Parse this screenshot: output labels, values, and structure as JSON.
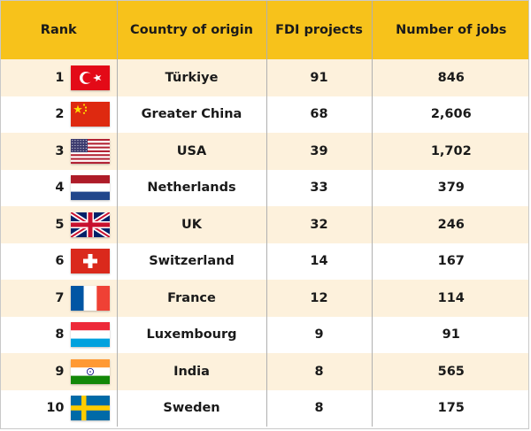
{
  "headers": [
    "Rank",
    "Country of origin",
    "FDI projects",
    "Number of jobs"
  ],
  "rows": [
    {
      "rank": "1",
      "flag": "turkey-flag-icon",
      "country": "Türkiye",
      "projects": "91",
      "jobs": "846"
    },
    {
      "rank": "2",
      "flag": "china-flag-icon",
      "country": "Greater China",
      "projects": "68",
      "jobs": "2,606"
    },
    {
      "rank": "3",
      "flag": "usa-flag-icon",
      "country": "USA",
      "projects": "39",
      "jobs": "1,702"
    },
    {
      "rank": "4",
      "flag": "netherlands-flag-icon",
      "country": "Netherlands",
      "projects": "33",
      "jobs": "379"
    },
    {
      "rank": "5",
      "flag": "uk-flag-icon",
      "country": "UK",
      "projects": "32",
      "jobs": "246"
    },
    {
      "rank": "6",
      "flag": "switzerland-flag-icon",
      "country": "Switzerland",
      "projects": "14",
      "jobs": "167"
    },
    {
      "rank": "7",
      "flag": "france-flag-icon",
      "country": "France",
      "projects": "12",
      "jobs": "114"
    },
    {
      "rank": "8",
      "flag": "luxembourg-flag-icon",
      "country": "Luxembourg",
      "projects": "9",
      "jobs": "91"
    },
    {
      "rank": "9",
      "flag": "india-flag-icon",
      "country": "India",
      "projects": "8",
      "jobs": "565"
    },
    {
      "rank": "10",
      "flag": "sweden-flag-icon",
      "country": "Sweden",
      "projects": "8",
      "jobs": "175"
    }
  ],
  "colors": {
    "header_bg": "#f7c21b",
    "row_alt_bg": "#fdf1dc",
    "row_bg": "#ffffff"
  }
}
